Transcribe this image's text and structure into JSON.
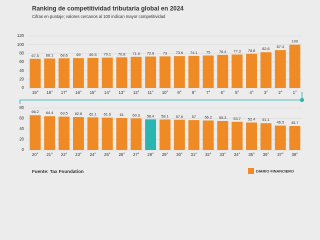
{
  "title": "Ranking de competitividad tributaria global en 2024",
  "subtitle": "Cifras en puntaje; valores cercanos al 100 indican mayor competitividad",
  "source": "Fuente: Tax Foundation",
  "logo": "DIARIO FINANCIERO",
  "chart_data": [
    {
      "type": "bar",
      "categories": [
        "19°",
        "18°",
        "17°",
        "16°",
        "15°",
        "14°",
        "13°",
        "12°",
        "11°",
        "10°",
        "9°",
        "8°",
        "7°",
        "6°",
        "5°",
        "4°",
        "3°",
        "2°",
        "1°"
      ],
      "values": [
        67.5,
        68.1,
        68.6,
        69.0,
        69.5,
        70.1,
        70.8,
        71.9,
        72.6,
        73.0,
        73.6,
        74.1,
        75.0,
        76.4,
        77.3,
        78.8,
        82.6,
        87.4,
        100
      ],
      "colors": [
        "#f08a24",
        "#f08a24",
        "#f08a24",
        "#f08a24",
        "#f08a24",
        "#f08a24",
        "#f08a24",
        "#f08a24",
        "#f08a24",
        "#f08a24",
        "#f08a24",
        "#f08a24",
        "#f08a24",
        "#f08a24",
        "#f08a24",
        "#f08a24",
        "#f08a24",
        "#f08a24",
        "#f08a24"
      ],
      "ylim": [
        0,
        120
      ],
      "yticks": [
        0,
        20,
        40,
        60,
        80,
        100,
        120
      ],
      "grid": true
    },
    {
      "type": "bar",
      "categories": [
        "20°",
        "21°",
        "22°",
        "23°",
        "24°",
        "25°",
        "26°",
        "27°",
        "28°",
        "29°",
        "30°",
        "31°",
        "32°",
        "33°",
        "34°",
        "35°",
        "36°",
        "37°",
        "38°"
      ],
      "values": [
        66.2,
        64.4,
        63.5,
        62.8,
        62.1,
        61.6,
        61.0,
        60.3,
        58.4,
        58.1,
        57.6,
        57.0,
        56.2,
        55.3,
        53.7,
        52.4,
        51.1,
        46.5,
        45.7
      ],
      "colors": [
        "#f08a24",
        "#f08a24",
        "#f08a24",
        "#f08a24",
        "#f08a24",
        "#f08a24",
        "#f08a24",
        "#f08a24",
        "#2bb5b0",
        "#f08a24",
        "#f08a24",
        "#f08a24",
        "#f08a24",
        "#f08a24",
        "#f08a24",
        "#f08a24",
        "#f08a24",
        "#f08a24",
        "#f08a24"
      ],
      "ylim": [
        0,
        80
      ],
      "yticks": [
        0,
        20,
        40,
        60,
        80
      ],
      "grid": true
    }
  ]
}
